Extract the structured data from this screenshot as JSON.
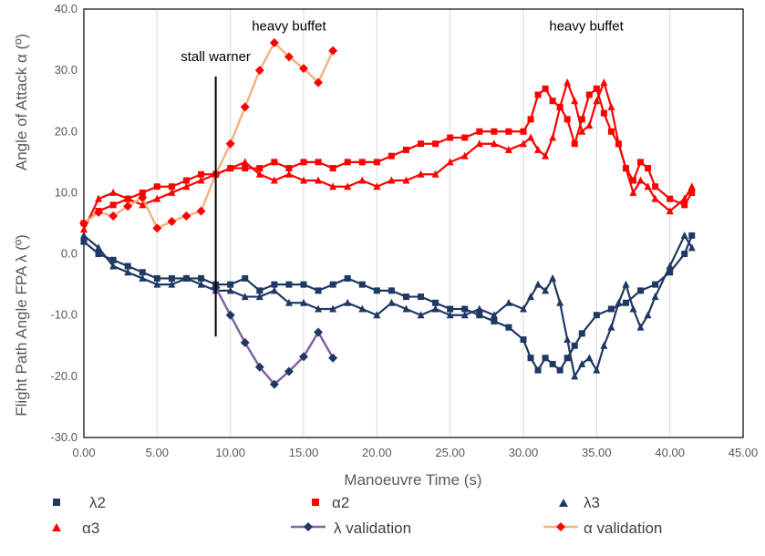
{
  "chart_data": {
    "type": "scatter",
    "xlabel": "Manoeuvre Time (s)",
    "ylabel_upper": "Angle of Attack α (º)",
    "ylabel_lower": "Flight Path Angle FPA λ (º)",
    "xlim": [
      0,
      45
    ],
    "ylim": [
      -30,
      40
    ],
    "x_ticks": [
      "0.00",
      "5.00",
      "10.00",
      "15.00",
      "20.00",
      "25.00",
      "30.00",
      "35.00",
      "40.00",
      "45.00"
    ],
    "y_ticks": [
      "-30.0",
      "-20.0",
      "-10.0",
      "0.0",
      "10.0",
      "20.0",
      "30.0",
      "40.0"
    ],
    "grid": "vertical",
    "annotations": [
      {
        "text": "stall warner",
        "x": 9.0,
        "y": 31.5
      },
      {
        "text": "heavy buffet",
        "x": 14.0,
        "y": 36.5
      },
      {
        "text": "heavy buffet",
        "x": 34.3,
        "y": 36.5
      }
    ],
    "stall_line": {
      "x": 9.0,
      "y_from": -13.5,
      "y_to": 29.0
    },
    "series": [
      {
        "name": "λ2",
        "marker": "square",
        "color": "#1F3864",
        "line": true,
        "points": [
          [
            0,
            2
          ],
          [
            1,
            0
          ],
          [
            2,
            -1
          ],
          [
            3,
            -2
          ],
          [
            4,
            -3
          ],
          [
            5,
            -4
          ],
          [
            6,
            -4
          ],
          [
            7,
            -4
          ],
          [
            8,
            -4
          ],
          [
            9,
            -5
          ],
          [
            10,
            -5
          ],
          [
            11,
            -4
          ],
          [
            12,
            -6
          ],
          [
            13,
            -5
          ],
          [
            14,
            -5
          ],
          [
            15,
            -5
          ],
          [
            16,
            -6
          ],
          [
            17,
            -5
          ],
          [
            18,
            -4
          ],
          [
            19,
            -5
          ],
          [
            20,
            -6
          ],
          [
            21,
            -6
          ],
          [
            22,
            -7
          ],
          [
            23,
            -7
          ],
          [
            24,
            -8
          ],
          [
            25,
            -9
          ],
          [
            26,
            -9
          ],
          [
            27,
            -10
          ],
          [
            28,
            -11
          ],
          [
            29,
            -12
          ],
          [
            30,
            -14
          ],
          [
            30.5,
            -17
          ],
          [
            31,
            -19
          ],
          [
            31.5,
            -17
          ],
          [
            32,
            -18
          ],
          [
            32.5,
            -19
          ],
          [
            33,
            -17
          ],
          [
            33.5,
            -15
          ],
          [
            34,
            -13
          ],
          [
            35,
            -10
          ],
          [
            36,
            -9
          ],
          [
            37,
            -8
          ],
          [
            38,
            -6
          ],
          [
            39,
            -5
          ],
          [
            40,
            -3
          ],
          [
            41,
            0
          ],
          [
            41.5,
            3
          ]
        ]
      },
      {
        "name": "α2",
        "marker": "square",
        "color": "#FF0000",
        "line": true,
        "points": [
          [
            0,
            5
          ],
          [
            1,
            7
          ],
          [
            2,
            8
          ],
          [
            3,
            9
          ],
          [
            4,
            10
          ],
          [
            5,
            11
          ],
          [
            6,
            11
          ],
          [
            7,
            12
          ],
          [
            8,
            13
          ],
          [
            9,
            13
          ],
          [
            10,
            14
          ],
          [
            11,
            14
          ],
          [
            12,
            14
          ],
          [
            13,
            15
          ],
          [
            14,
            14
          ],
          [
            15,
            15
          ],
          [
            16,
            15
          ],
          [
            17,
            14
          ],
          [
            18,
            15
          ],
          [
            19,
            15
          ],
          [
            20,
            15
          ],
          [
            21,
            16
          ],
          [
            22,
            17
          ],
          [
            23,
            18
          ],
          [
            24,
            18
          ],
          [
            25,
            19
          ],
          [
            26,
            19
          ],
          [
            27,
            20
          ],
          [
            28,
            20
          ],
          [
            29,
            20
          ],
          [
            30,
            20
          ],
          [
            30.5,
            22
          ],
          [
            31,
            26
          ],
          [
            31.5,
            27
          ],
          [
            32,
            25
          ],
          [
            32.5,
            24
          ],
          [
            33,
            22
          ],
          [
            33.5,
            18
          ],
          [
            34,
            22
          ],
          [
            34.5,
            26
          ],
          [
            35,
            27
          ],
          [
            35.5,
            23
          ],
          [
            36,
            20
          ],
          [
            36.5,
            18
          ],
          [
            37,
            14
          ],
          [
            37.5,
            12
          ],
          [
            38,
            15
          ],
          [
            38.5,
            14
          ],
          [
            39,
            11
          ],
          [
            40,
            9
          ],
          [
            41,
            8
          ],
          [
            41.5,
            10
          ]
        ]
      },
      {
        "name": "λ3",
        "marker": "triangle",
        "color": "#1F3864",
        "line": true,
        "points": [
          [
            0,
            3
          ],
          [
            1,
            1
          ],
          [
            2,
            -2
          ],
          [
            3,
            -3
          ],
          [
            4,
            -4
          ],
          [
            5,
            -5
          ],
          [
            6,
            -5
          ],
          [
            7,
            -4
          ],
          [
            8,
            -5
          ],
          [
            9,
            -6
          ],
          [
            10,
            -6
          ],
          [
            11,
            -7
          ],
          [
            12,
            -7
          ],
          [
            13,
            -6
          ],
          [
            14,
            -8
          ],
          [
            15,
            -8
          ],
          [
            16,
            -9
          ],
          [
            17,
            -9
          ],
          [
            18,
            -8
          ],
          [
            19,
            -9
          ],
          [
            20,
            -10
          ],
          [
            21,
            -8
          ],
          [
            22,
            -9
          ],
          [
            23,
            -10
          ],
          [
            24,
            -9
          ],
          [
            25,
            -10
          ],
          [
            26,
            -10
          ],
          [
            27,
            -9
          ],
          [
            28,
            -10
          ],
          [
            29,
            -8
          ],
          [
            30,
            -9
          ],
          [
            30.5,
            -7
          ],
          [
            31,
            -5
          ],
          [
            31.5,
            -6
          ],
          [
            32,
            -4
          ],
          [
            32.5,
            -8
          ],
          [
            33,
            -14
          ],
          [
            33.5,
            -20
          ],
          [
            34,
            -18
          ],
          [
            34.5,
            -17
          ],
          [
            35,
            -19
          ],
          [
            35.5,
            -15
          ],
          [
            36,
            -12
          ],
          [
            36.5,
            -8
          ],
          [
            37,
            -5
          ],
          [
            37.5,
            -9
          ],
          [
            38,
            -12
          ],
          [
            38.5,
            -10
          ],
          [
            39,
            -7
          ],
          [
            40,
            -2
          ],
          [
            41,
            3
          ],
          [
            41.5,
            1
          ]
        ]
      },
      {
        "name": "α3",
        "marker": "triangle",
        "color": "#FF0000",
        "line": true,
        "points": [
          [
            0,
            4
          ],
          [
            1,
            9
          ],
          [
            2,
            10
          ],
          [
            3,
            9
          ],
          [
            4,
            8
          ],
          [
            5,
            9
          ],
          [
            6,
            10
          ],
          [
            7,
            11
          ],
          [
            8,
            12
          ],
          [
            9,
            13
          ],
          [
            10,
            14
          ],
          [
            11,
            15
          ],
          [
            12,
            13
          ],
          [
            13,
            12
          ],
          [
            14,
            13
          ],
          [
            15,
            12
          ],
          [
            16,
            12
          ],
          [
            17,
            11
          ],
          [
            18,
            11
          ],
          [
            19,
            12
          ],
          [
            20,
            11
          ],
          [
            21,
            12
          ],
          [
            22,
            12
          ],
          [
            23,
            13
          ],
          [
            24,
            13
          ],
          [
            25,
            15
          ],
          [
            26,
            16
          ],
          [
            27,
            18
          ],
          [
            28,
            18
          ],
          [
            29,
            17
          ],
          [
            30,
            18
          ],
          [
            30.5,
            19
          ],
          [
            31,
            17
          ],
          [
            31.5,
            16
          ],
          [
            32,
            19
          ],
          [
            32.5,
            24
          ],
          [
            33,
            28
          ],
          [
            33.5,
            25
          ],
          [
            34,
            20
          ],
          [
            34.5,
            21
          ],
          [
            35,
            25
          ],
          [
            35.5,
            28
          ],
          [
            36,
            24
          ],
          [
            36.5,
            18
          ],
          [
            37,
            14
          ],
          [
            37.5,
            10
          ],
          [
            38,
            12
          ],
          [
            38.5,
            11
          ],
          [
            39,
            9
          ],
          [
            40,
            7
          ],
          [
            41,
            9
          ],
          [
            41.5,
            11
          ]
        ]
      },
      {
        "name": "λ validation",
        "marker": "diamond",
        "color": "#1F3864",
        "line_color": "#8064A2",
        "line": true,
        "points": [
          [
            9,
            -5.5
          ],
          [
            10,
            -10
          ],
          [
            11,
            -14.5
          ],
          [
            12,
            -18.5
          ],
          [
            13,
            -21.3
          ],
          [
            14,
            -19.2
          ],
          [
            15,
            -16.8
          ],
          [
            16,
            -12.8
          ],
          [
            17,
            -17
          ]
        ]
      },
      {
        "name": "α validation",
        "marker": "diamond",
        "color": "#FF0000",
        "line_color": "#F4B183",
        "line": true,
        "points": [
          [
            0,
            5
          ],
          [
            1,
            6.8
          ],
          [
            2,
            6.2
          ],
          [
            3,
            7.8
          ],
          [
            4,
            9.2
          ],
          [
            5,
            4.2
          ],
          [
            6,
            5.3
          ],
          [
            7,
            6.2
          ],
          [
            8,
            7
          ],
          [
            9,
            13
          ],
          [
            10,
            18
          ],
          [
            11,
            24
          ],
          [
            12,
            30
          ],
          [
            13,
            34.5
          ],
          [
            14,
            32.2
          ],
          [
            15,
            30.3
          ],
          [
            16,
            28
          ],
          [
            17,
            33.2
          ]
        ]
      }
    ]
  },
  "legend": [
    {
      "label": "λ2"
    },
    {
      "label": "α2"
    },
    {
      "label": "λ3"
    },
    {
      "label": "α3"
    },
    {
      "label": "λ validation"
    },
    {
      "label": "α validation"
    }
  ]
}
